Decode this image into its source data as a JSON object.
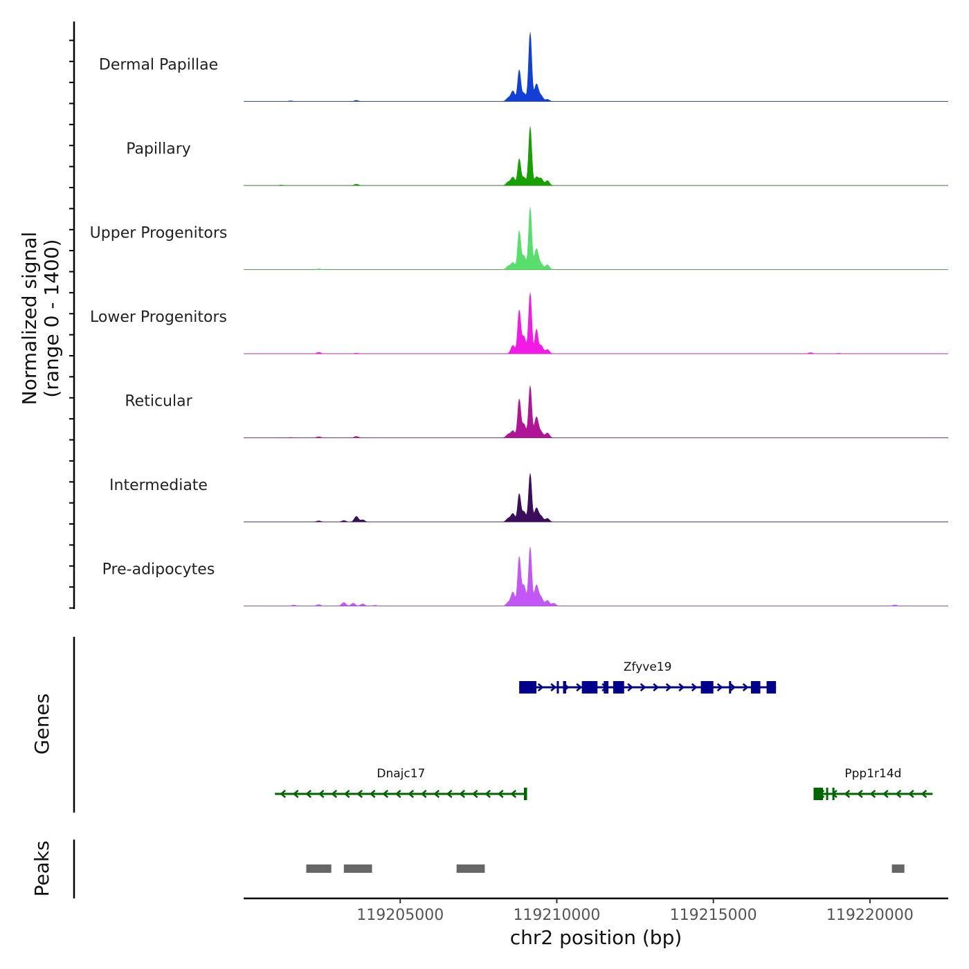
{
  "chart_data": {
    "type": "area",
    "title": "",
    "ylabel_line1": "Normalized signal",
    "ylabel_line2": "(range 0 - 1400)",
    "ylim": [
      0,
      1400
    ],
    "xlabel": "chr2 position (bp)",
    "xlim": [
      119200000,
      119222500
    ],
    "xticks": [
      119205000,
      119210000,
      119215000,
      119220000
    ],
    "xtick_labels": [
      "119205000",
      "119210000",
      "119215000",
      "119220000"
    ],
    "tracks": [
      {
        "name": "Dermal Papillae",
        "color": "#1240d6",
        "peaks": [
          [
            119208450,
            0.05
          ],
          [
            119208600,
            0.15
          ],
          [
            119208800,
            0.45
          ],
          [
            119208950,
            0.12
          ],
          [
            119209150,
            1.0
          ],
          [
            119209350,
            0.25
          ],
          [
            119209500,
            0.08
          ],
          [
            119209700,
            0.03
          ],
          [
            119203600,
            0.015
          ],
          [
            119201500,
            0.008
          ]
        ]
      },
      {
        "name": "Papillary",
        "color": "#17a000",
        "peaks": [
          [
            119208450,
            0.05
          ],
          [
            119208600,
            0.12
          ],
          [
            119208800,
            0.38
          ],
          [
            119208950,
            0.12
          ],
          [
            119209150,
            0.85
          ],
          [
            119209350,
            0.12
          ],
          [
            119209500,
            0.1
          ],
          [
            119209700,
            0.07
          ],
          [
            119203600,
            0.02
          ],
          [
            119201200,
            0.006
          ]
        ]
      },
      {
        "name": "Upper Progenitors",
        "color": "#57df6b",
        "peaks": [
          [
            119208450,
            0.05
          ],
          [
            119208600,
            0.1
          ],
          [
            119208800,
            0.55
          ],
          [
            119208950,
            0.2
          ],
          [
            119209150,
            0.9
          ],
          [
            119209350,
            0.3
          ],
          [
            119209500,
            0.08
          ],
          [
            119209700,
            0.07
          ],
          [
            119202400,
            0.01
          ]
        ]
      },
      {
        "name": "Lower Progenitors",
        "color": "#f41ae5",
        "peaks": [
          [
            119208600,
            0.12
          ],
          [
            119208800,
            0.62
          ],
          [
            119208950,
            0.25
          ],
          [
            119209150,
            0.88
          ],
          [
            119209350,
            0.35
          ],
          [
            119209500,
            0.12
          ],
          [
            119209700,
            0.06
          ],
          [
            119202400,
            0.02
          ],
          [
            119203600,
            0.008
          ],
          [
            119218100,
            0.015
          ],
          [
            119219000,
            0.006
          ]
        ]
      },
      {
        "name": "Reticular",
        "color": "#b01597",
        "peaks": [
          [
            119208450,
            0.05
          ],
          [
            119208600,
            0.1
          ],
          [
            119208800,
            0.55
          ],
          [
            119208950,
            0.2
          ],
          [
            119209150,
            0.75
          ],
          [
            119209350,
            0.3
          ],
          [
            119209500,
            0.08
          ],
          [
            119209700,
            0.07
          ],
          [
            119203600,
            0.02
          ],
          [
            119202400,
            0.015
          ],
          [
            119201500,
            0.005
          ]
        ]
      },
      {
        "name": "Intermediate",
        "color": "#3a0e5a",
        "peaks": [
          [
            119208450,
            0.05
          ],
          [
            119208600,
            0.12
          ],
          [
            119208800,
            0.4
          ],
          [
            119208950,
            0.15
          ],
          [
            119209150,
            0.7
          ],
          [
            119209350,
            0.2
          ],
          [
            119209500,
            0.08
          ],
          [
            119209700,
            0.05
          ],
          [
            119203200,
            0.02
          ],
          [
            119203600,
            0.08
          ],
          [
            119203800,
            0.03
          ],
          [
            119202400,
            0.015
          ]
        ]
      },
      {
        "name": "Pre-adipocytes",
        "color": "#c257f5",
        "peaks": [
          [
            119208450,
            0.05
          ],
          [
            119208600,
            0.2
          ],
          [
            119208800,
            0.7
          ],
          [
            119208950,
            0.3
          ],
          [
            119209150,
            0.85
          ],
          [
            119209350,
            0.3
          ],
          [
            119209500,
            0.12
          ],
          [
            119209700,
            0.08
          ],
          [
            119209900,
            0.04
          ],
          [
            119203200,
            0.05
          ],
          [
            119203500,
            0.04
          ],
          [
            119203800,
            0.03
          ],
          [
            119202400,
            0.02
          ],
          [
            119201600,
            0.012
          ],
          [
            119204200,
            0.01
          ],
          [
            119220800,
            0.015
          ]
        ]
      }
    ],
    "genes": [
      {
        "name": "Zfyve19",
        "strand": "+",
        "color": "#00008b",
        "start": 119208800,
        "end": 119217000,
        "exons": [
          [
            119208800,
            119209350
          ],
          [
            119210000,
            119210050
          ],
          [
            119210200,
            119210300
          ],
          [
            119210800,
            119211300
          ],
          [
            119211500,
            119211650
          ],
          [
            119211800,
            119212150
          ],
          [
            119214600,
            119215000
          ],
          [
            119215500,
            119215550
          ],
          [
            119216200,
            119216500
          ],
          [
            119216700,
            119217000
          ]
        ]
      },
      {
        "name": "Dnajc17",
        "strand": "-",
        "color": "#006400",
        "start": 119201000,
        "end": 119209050,
        "exons": [
          [
            119208950,
            119209050
          ]
        ]
      },
      {
        "name": "Ppp1r14d",
        "strand": "-",
        "color": "#006400",
        "start": 119218200,
        "end": 119222000,
        "exons": [
          [
            119218200,
            119218500
          ],
          [
            119218600,
            119218650
          ],
          [
            119218800,
            119218850
          ]
        ]
      }
    ],
    "peaks": [
      [
        119202000,
        119202800
      ],
      [
        119203200,
        119204100
      ],
      [
        119206800,
        119207700
      ],
      [
        119220700,
        119221100
      ]
    ],
    "panel_labels": {
      "genes": "Genes",
      "peaks": "Peaks"
    }
  }
}
